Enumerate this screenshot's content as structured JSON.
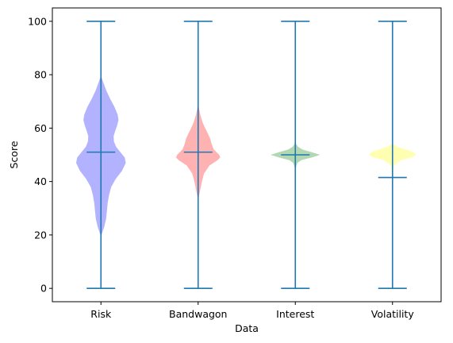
{
  "chart_data": {
    "type": "violin",
    "xlabel": "Data",
    "ylabel": "Score",
    "ylim": [
      -5,
      105
    ],
    "yticks": [
      0,
      20,
      40,
      60,
      80,
      100
    ],
    "grid": false,
    "categories": [
      "Risk",
      "Bandwagon",
      "Interest",
      "Volatility"
    ],
    "series": [
      {
        "category": "Risk",
        "color": "#6666ff",
        "min": 0,
        "max": 100,
        "median": 51,
        "density": [
          [
            20,
            0.02
          ],
          [
            23,
            0.12
          ],
          [
            26,
            0.19
          ],
          [
            29,
            0.22
          ],
          [
            32,
            0.25
          ],
          [
            35,
            0.3
          ],
          [
            38,
            0.38
          ],
          [
            41,
            0.55
          ],
          [
            44,
            0.78
          ],
          [
            47,
            0.92
          ],
          [
            49,
            0.88
          ],
          [
            51,
            0.72
          ],
          [
            53,
            0.56
          ],
          [
            55,
            0.48
          ],
          [
            57,
            0.47
          ],
          [
            59,
            0.53
          ],
          [
            61,
            0.6
          ],
          [
            63,
            0.65
          ],
          [
            65,
            0.62
          ],
          [
            68,
            0.5
          ],
          [
            71,
            0.34
          ],
          [
            74,
            0.2
          ],
          [
            77,
            0.09
          ],
          [
            79,
            0.02
          ]
        ]
      },
      {
        "category": "Bandwagon",
        "color": "#ff6666",
        "min": 0,
        "max": 100,
        "median": 51,
        "density": [
          [
            34,
            0.02
          ],
          [
            37,
            0.08
          ],
          [
            40,
            0.14
          ],
          [
            43,
            0.22
          ],
          [
            46,
            0.42
          ],
          [
            48,
            0.72
          ],
          [
            49,
            0.82
          ],
          [
            50,
            0.78
          ],
          [
            52,
            0.58
          ],
          [
            54,
            0.5
          ],
          [
            56,
            0.45
          ],
          [
            58,
            0.36
          ],
          [
            60,
            0.26
          ],
          [
            62,
            0.17
          ],
          [
            65,
            0.08
          ],
          [
            68,
            0.02
          ]
        ]
      },
      {
        "category": "Interest",
        "color": "#66b266",
        "min": 0,
        "max": 100,
        "median": 50,
        "density": [
          [
            45,
            0.02
          ],
          [
            46,
            0.04
          ],
          [
            47,
            0.08
          ],
          [
            48,
            0.22
          ],
          [
            49,
            0.6
          ],
          [
            50,
            0.92
          ],
          [
            51,
            0.6
          ],
          [
            52,
            0.26
          ],
          [
            53,
            0.1
          ],
          [
            54,
            0.03
          ],
          [
            55,
            0.01
          ]
        ]
      },
      {
        "category": "Volatility",
        "color": "#ffff66",
        "min": 0,
        "max": 100,
        "median": 41.5,
        "density": [
          [
            20,
            0.003
          ],
          [
            24,
            0.006
          ],
          [
            30,
            0.012
          ],
          [
            36,
            0.02
          ],
          [
            40,
            0.025
          ],
          [
            44,
            0.03
          ],
          [
            46,
            0.05
          ],
          [
            48,
            0.32
          ],
          [
            49,
            0.7
          ],
          [
            50,
            0.88
          ],
          [
            51,
            0.78
          ],
          [
            52,
            0.5
          ],
          [
            53,
            0.18
          ],
          [
            54,
            0.03
          ]
        ]
      }
    ],
    "whisker_color": "#1f77b4"
  }
}
